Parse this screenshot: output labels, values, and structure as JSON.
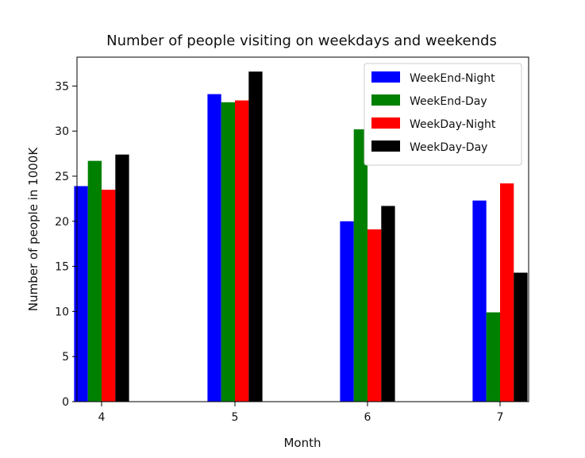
{
  "chart_data": {
    "type": "bar",
    "title": "Number of people visiting on weekdays and weekends",
    "xlabel": "Month",
    "ylabel": "Number of people in 1000K",
    "categories": [
      "4",
      "5",
      "6",
      "7"
    ],
    "ylim": [
      0,
      38.2
    ],
    "yticks": [
      "0",
      "5",
      "10",
      "15",
      "20",
      "25",
      "30",
      "35"
    ],
    "grid": false,
    "legend_position": "top-right",
    "series": [
      {
        "name": "WeekEnd-Night",
        "color": "#0000ff",
        "values": [
          23.9,
          34.1,
          20.0,
          22.3
        ]
      },
      {
        "name": "WeekEnd-Day",
        "color": "#008000",
        "values": [
          26.7,
          33.2,
          30.2,
          9.9
        ]
      },
      {
        "name": "WeekDay-Night",
        "color": "#ff0000",
        "values": [
          23.5,
          33.4,
          19.1,
          24.2
        ]
      },
      {
        "name": "WeekDay-Day",
        "color": "#000000",
        "values": [
          27.4,
          36.6,
          21.7,
          14.3
        ]
      }
    ]
  }
}
